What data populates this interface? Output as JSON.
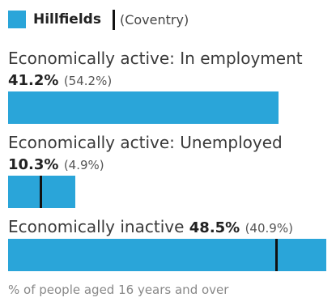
{
  "chart_data": {
    "type": "bar",
    "legend": {
      "area": "Hillfields",
      "comparison": "(Coventry)",
      "area_color": "#2aa5d9",
      "comparison_marker_color": "#111111"
    },
    "scale_max": 50,
    "rows": [
      {
        "label_text": "Economically active: In employment",
        "value": 41.2,
        "value_label": "41.2%",
        "comparison": 54.2,
        "comparison_label": "(54.2%)"
      },
      {
        "label_text": "Economically active: Unemployed",
        "value": 10.3,
        "value_label": "10.3%",
        "comparison": 4.9,
        "comparison_label": "(4.9%)"
      },
      {
        "label_text": "Economically inactive",
        "value": 48.5,
        "value_label": "48.5%",
        "comparison": 40.9,
        "comparison_label": "(40.9%)"
      }
    ],
    "footnote": "% of people aged 16 years and over"
  }
}
